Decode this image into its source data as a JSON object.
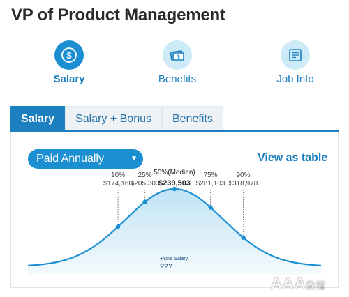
{
  "page": {
    "title": "VP of Product Management"
  },
  "top_nav": {
    "items": [
      {
        "label": "Salary",
        "icon": "dollar-circle-icon",
        "active": true
      },
      {
        "label": "Benefits",
        "icon": "cash-icon",
        "active": false
      },
      {
        "label": "Job Info",
        "icon": "document-icon",
        "active": false
      }
    ]
  },
  "tabs": [
    {
      "label": "Salary",
      "active": true
    },
    {
      "label": "Salary + Bonus",
      "active": false
    },
    {
      "label": "Benefits",
      "active": false
    }
  ],
  "controls": {
    "period_selected": "Paid Annually",
    "view_as_table": "View as table"
  },
  "chart_data": {
    "type": "area",
    "percentiles": [
      {
        "pct": "10%",
        "value": "$174,166",
        "salary": 174166
      },
      {
        "pct": "25%",
        "value": "$205,303",
        "salary": 205303
      },
      {
        "pct": "50%(Median)",
        "value": "$239,503",
        "salary": 239503
      },
      {
        "pct": "75%",
        "value": "$281,103",
        "salary": 281103
      },
      {
        "pct": "90%",
        "value": "$318,978",
        "salary": 318978
      }
    ],
    "your_salary": {
      "label": "Your Salary",
      "value": "???"
    }
  },
  "colors": {
    "accent": "#1b7fc0",
    "curve": "#1b8fd2",
    "fill": "#d6eef9"
  },
  "watermark": {
    "text": "AAA",
    "suffix": "教程"
  }
}
